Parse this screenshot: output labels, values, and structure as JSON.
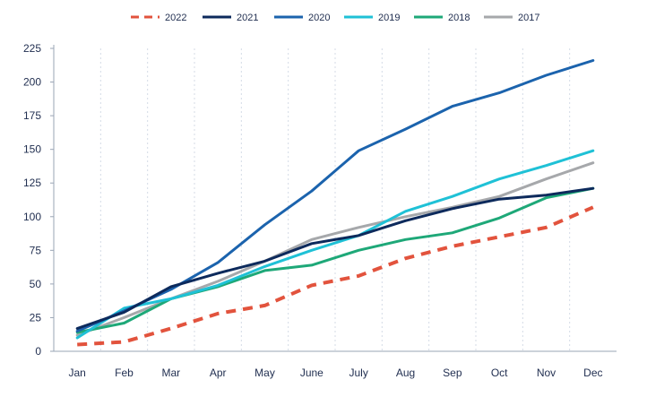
{
  "chart_data": {
    "type": "line",
    "title": "",
    "xlabel": "",
    "ylabel": "",
    "categories": [
      "Jan",
      "Feb",
      "Mar",
      "Apr",
      "May",
      "June",
      "July",
      "Aug",
      "Sep",
      "Oct",
      "Nov",
      "Dec"
    ],
    "ylim": [
      0,
      225
    ],
    "yticks": [
      0,
      25,
      50,
      75,
      100,
      125,
      150,
      175,
      200,
      225
    ],
    "grid": "vertical-dashed",
    "legend_position": "top",
    "series": [
      {
        "name": "2022",
        "color": "#e2533d",
        "dashed": true,
        "values": [
          5,
          7,
          17,
          28,
          34,
          49,
          56,
          69,
          78,
          85,
          92,
          107
        ]
      },
      {
        "name": "2021",
        "color": "#0d2a5c",
        "dashed": false,
        "values": [
          17,
          29,
          48,
          58,
          67,
          80,
          86,
          97,
          106,
          113,
          116,
          121
        ]
      },
      {
        "name": "2020",
        "color": "#1b63ad",
        "dashed": false,
        "values": [
          15,
          30,
          46,
          66,
          94,
          119,
          149,
          165,
          182,
          192,
          205,
          216
        ]
      },
      {
        "name": "2019",
        "color": "#1fc1d6",
        "dashed": false,
        "values": [
          10,
          32,
          39,
          49,
          63,
          75,
          86,
          104,
          115,
          128,
          138,
          149
        ]
      },
      {
        "name": "2018",
        "color": "#1ea878",
        "dashed": false,
        "values": [
          14,
          21,
          39,
          48,
          60,
          64,
          75,
          83,
          88,
          99,
          114,
          121
        ]
      },
      {
        "name": "2017",
        "color": "#a6a8ab",
        "dashed": false,
        "values": [
          12,
          25,
          39,
          52,
          67,
          83,
          92,
          100,
          107,
          115,
          128,
          140
        ]
      }
    ]
  }
}
